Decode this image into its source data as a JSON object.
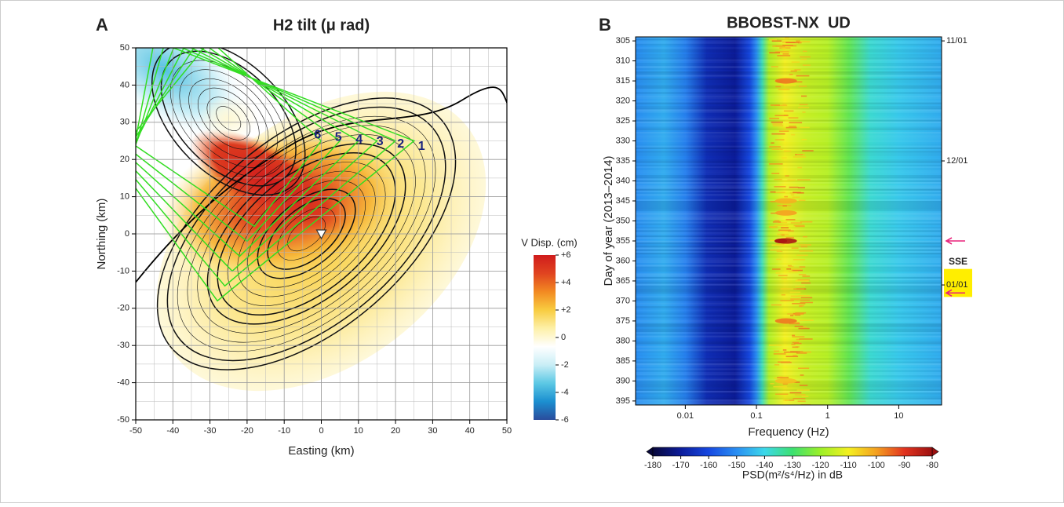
{
  "chart_data": [
    {
      "type": "contour",
      "panel_label": "A",
      "title": "H2 tilt (μ rad)",
      "x_label": "Easting (km)",
      "y_label": "Northing (km)",
      "xlim": [
        -50,
        50
      ],
      "ylim": [
        -50,
        50
      ],
      "xticks": [
        -50,
        -40,
        -30,
        -20,
        -10,
        0,
        10,
        20,
        30,
        40,
        50
      ],
      "yticks": [
        -50,
        -40,
        -30,
        -20,
        -10,
        0,
        10,
        20,
        30,
        40,
        50
      ],
      "grid": true,
      "fault_labels": [
        "1",
        "2",
        "3",
        "4",
        "5",
        "6"
      ],
      "colorbar": {
        "title": "V Disp. (cm)",
        "lim": [
          -6,
          6
        ],
        "ticks": [
          {
            "value": 6,
            "label": "+6"
          },
          {
            "value": 4,
            "label": "+4"
          },
          {
            "value": 2,
            "label": "+2"
          },
          0,
          -2,
          -4,
          -6
        ],
        "colors": [
          "#2a4c9c",
          "#1b8fd0",
          "#5cc8e4",
          "#c9eef6",
          "#ffffff",
          "#fdf0a8",
          "#f8cc40",
          "#f28a22",
          "#e04420",
          "#d01c1c"
        ]
      }
    },
    {
      "type": "spectrogram",
      "panel_label": "B",
      "title": "BBOBST-NX  UD",
      "x_label": "Frequency (Hz)",
      "y_label": "Day of year (2013–2014)",
      "x_log": true,
      "xlim": [
        0.002,
        40
      ],
      "xticks": [
        0.01,
        0.1,
        1,
        10
      ],
      "ylim": [
        396,
        304
      ],
      "yticks": [
        305,
        310,
        315,
        320,
        325,
        330,
        335,
        340,
        345,
        350,
        355,
        360,
        365,
        370,
        375,
        380,
        385,
        390,
        395
      ],
      "y2ticks": [
        {
          "value": 305,
          "label": "11/01"
        },
        {
          "value": 335,
          "label": "12/01"
        },
        {
          "value": 366,
          "label": "01/01"
        }
      ],
      "arrow_days": [
        355,
        368
      ],
      "arrow_color": "#e8207a",
      "sse_label": "SSE",
      "sse_days": [
        362,
        369
      ],
      "sse_color": "#ffee00",
      "colorbar": {
        "title": "PSD(m²/s⁴/Hz) in dB",
        "lim": [
          -180,
          -80
        ],
        "ticks": [
          -180,
          -170,
          -160,
          -150,
          -140,
          -130,
          -120,
          -110,
          -100,
          -90,
          -80
        ],
        "colors": [
          "#08083a",
          "#0c1c9a",
          "#1648e0",
          "#2a8ef2",
          "#3cd8ea",
          "#3ce070",
          "#9cf028",
          "#f4f020",
          "#f4a020",
          "#e23420",
          "#9c1010"
        ]
      }
    }
  ]
}
